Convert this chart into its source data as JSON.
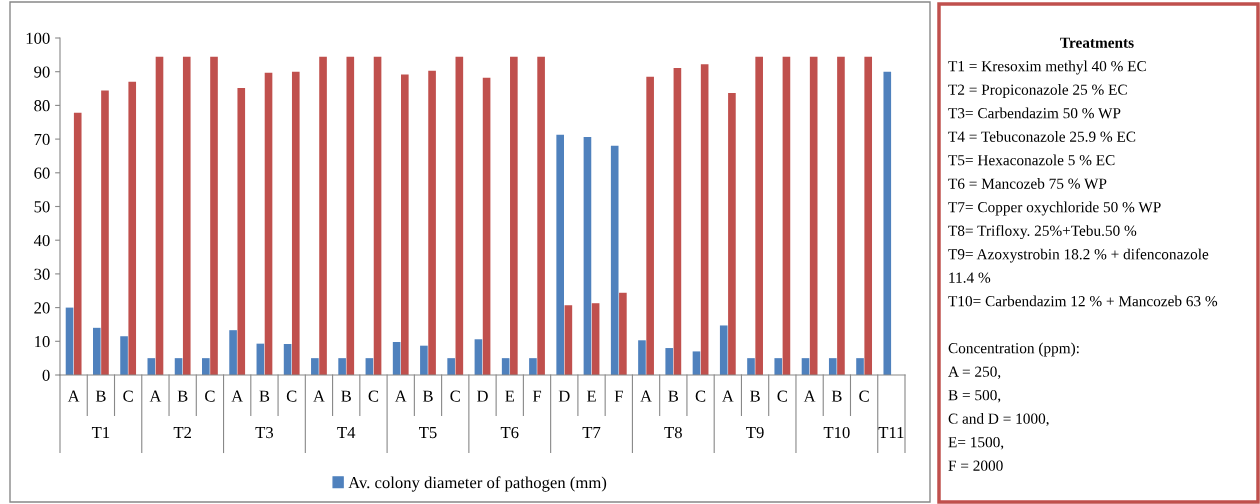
{
  "chart_data": {
    "type": "bar",
    "categories": [
      "A",
      "B",
      "C",
      "A",
      "B",
      "C",
      "A",
      "B",
      "C",
      "A",
      "B",
      "C",
      "A",
      "B",
      "C",
      "D",
      "E",
      "F",
      "D",
      "E",
      "F",
      "A",
      "B",
      "C",
      "A",
      "B",
      "C",
      "A",
      "B",
      "C",
      null
    ],
    "series": [
      {
        "name": "Av. colony diameter of pathogen (mm)",
        "color": "#4f81bd",
        "values": [
          20,
          14,
          11.5,
          5,
          5,
          5,
          13.3,
          9.3,
          9.2,
          5,
          5,
          5,
          9.8,
          8.7,
          5,
          10.6,
          5,
          5,
          71.3,
          70.6,
          68,
          10.3,
          8,
          7,
          14.7,
          5,
          5,
          5,
          5,
          5,
          90
        ]
      },
      {
        "color": "#c0504d",
        "values": [
          77.8,
          84.4,
          87,
          94.4,
          94.4,
          94.4,
          85.2,
          89.7,
          90,
          94.4,
          94.4,
          94.4,
          89.2,
          90.3,
          94.4,
          88.2,
          94.4,
          94.4,
          20.7,
          21.3,
          24.4,
          88.5,
          91.1,
          92.2,
          83.7,
          94.4,
          94.4,
          94.4,
          94.4,
          94.4,
          null
        ]
      }
    ],
    "ylim": [
      0,
      100
    ],
    "yticks": [
      0,
      10,
      20,
      30,
      40,
      50,
      60,
      70,
      80,
      90,
      100
    ],
    "grid": false,
    "legend": "bottom",
    "annotations": [
      "T1",
      "T2",
      "T3",
      "T4",
      "T5",
      "T6",
      "T7",
      "T8",
      "T9",
      "T10",
      "T11",
      "Treatments",
      "T1 = Kresoxim methyl 40 % EC",
      "T2 = Propiconazole 25 % EC",
      "T3= Carbendazim 50 % WP",
      "T4 = Tebuconazole 25.9 % EC",
      "T5= Hexaconazole 5 % EC",
      "T6 = Mancozeb 75 % WP",
      "T7= Copper oxychloride 50 % WP",
      "T8= Trifloxy. 25%+Tebu.50 %",
      "T9= Azoxystrobin 18.2 % + difenconazole",
      "11.4 %",
      "T10= Carbendazim 12 % + Mancozeb 63 %",
      "Concentration (ppm):",
      "A = 250,",
      "B = 500,",
      "C and D = 1000,",
      "E= 1500,",
      "F = 2000"
    ]
  }
}
